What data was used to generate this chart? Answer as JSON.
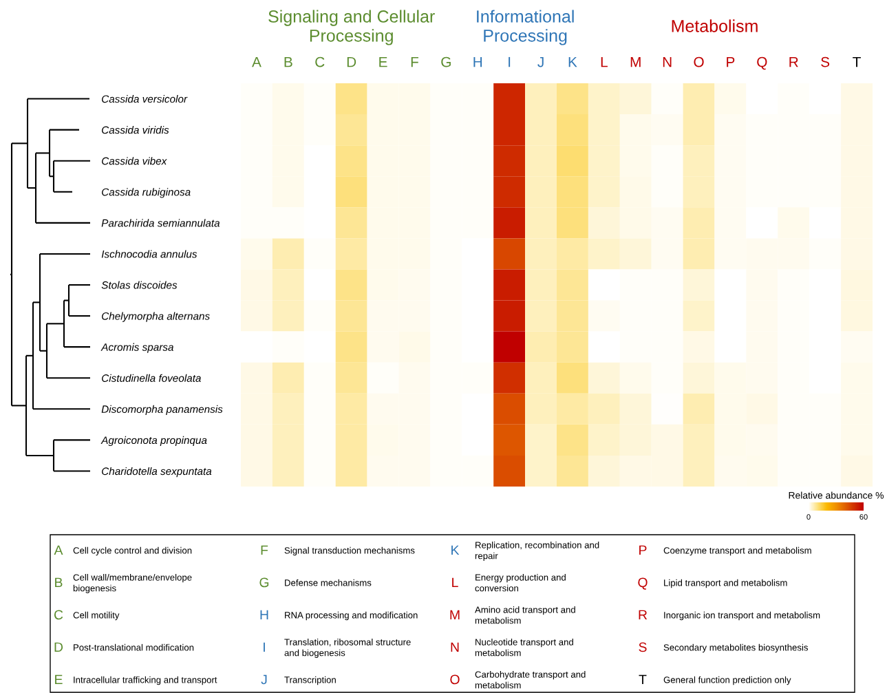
{
  "chart_data": {
    "type": "heatmap",
    "categories": [
      "A",
      "B",
      "C",
      "D",
      "E",
      "F",
      "G",
      "H",
      "I",
      "J",
      "K",
      "L",
      "M",
      "N",
      "O",
      "P",
      "Q",
      "R",
      "S",
      "T"
    ],
    "colors": [
      "#5b8c2e",
      "#5b8c2e",
      "#5b8c2e",
      "#5b8c2e",
      "#5b8c2e",
      "#5b8c2e",
      "#5b8c2e",
      "#2e75b6",
      "#2e75b6",
      "#2e75b6",
      "#2e75b6",
      "#c00000",
      "#c00000",
      "#c00000",
      "#c00000",
      "#c00000",
      "#c00000",
      "#c00000",
      "#c00000",
      "#000000"
    ],
    "y_categories": [
      "Cassida versicolor",
      "Cassida viridis",
      "Cassida vibex",
      "Cassida rubiginosa",
      "Parachirida semiannulata",
      "Ischnocodia annulus",
      "Stolas discoides",
      "Chelymorpha alternans",
      "Acromis sparsa",
      "Cistudinella foveolata",
      "Discomorpha panamensis",
      "Agroiconota propinqua",
      "Charidotella sexpuntata"
    ],
    "cells": [
      [
        0.5,
        1.5,
        0.5,
        9,
        1.5,
        1.5,
        0.5,
        0.5,
        52,
        5,
        9,
        4,
        3,
        0.5,
        6,
        1.5,
        0,
        0.5,
        0,
        2
      ],
      [
        0.5,
        1.5,
        0.5,
        8,
        1.5,
        1.5,
        0.5,
        0.5,
        52,
        5,
        10,
        4,
        1.5,
        1,
        6,
        1,
        0.5,
        0.7,
        0.5,
        2
      ],
      [
        0.5,
        1.5,
        0,
        9,
        1.5,
        1.5,
        0.5,
        0.5,
        51,
        5,
        11,
        4,
        1.5,
        0.7,
        5,
        1,
        0.5,
        0.7,
        0.5,
        2
      ],
      [
        0.5,
        1.5,
        0,
        10,
        1.5,
        1.5,
        0.5,
        0.5,
        51,
        5,
        10,
        4,
        1.8,
        0.7,
        5,
        1,
        0.5,
        0.7,
        0.5,
        2
      ],
      [
        0.5,
        0.5,
        0,
        8,
        1.5,
        1.5,
        0.5,
        0.5,
        54,
        5,
        10,
        3,
        1.8,
        1,
        6,
        1,
        0,
        1.5,
        0,
        2
      ],
      [
        1.5,
        6,
        0.5,
        7,
        1.5,
        1.5,
        0.5,
        0,
        45,
        5,
        7,
        4,
        3,
        1,
        6,
        1,
        1.2,
        1.2,
        0.5,
        2
      ],
      [
        2,
        5,
        0,
        9,
        1.5,
        1.2,
        0.5,
        0,
        54,
        5,
        8,
        0,
        0.5,
        0.5,
        3,
        0,
        1.2,
        0.5,
        0,
        2.5
      ],
      [
        2,
        5,
        0.5,
        8,
        1.2,
        1.2,
        0.5,
        0,
        54,
        5,
        8,
        1,
        0.5,
        0.5,
        4,
        0,
        1.2,
        0.5,
        0,
        2.5
      ],
      [
        0,
        0.5,
        0,
        9,
        1.2,
        1.8,
        0.5,
        0,
        60,
        6,
        8,
        0,
        0.5,
        0.5,
        2,
        0,
        1.2,
        0.5,
        0,
        1
      ],
      [
        2,
        6,
        0.5,
        8,
        0.5,
        1.2,
        0.5,
        0.5,
        50,
        5,
        10,
        3,
        1.5,
        0.5,
        3,
        1.5,
        1.2,
        0.5,
        0,
        1.5
      ],
      [
        2,
        5,
        0.5,
        7,
        1.2,
        1.2,
        0.5,
        0,
        44,
        5,
        7,
        5,
        3,
        0.3,
        6,
        1.5,
        2,
        0.5,
        0.5,
        1.5
      ],
      [
        2,
        5,
        0.5,
        7,
        1.5,
        1.2,
        0.5,
        0,
        42,
        4,
        9,
        4,
        3,
        2,
        5,
        1.5,
        1.2,
        0.5,
        0.5,
        1.5
      ],
      [
        2,
        5,
        0.5,
        7,
        1.2,
        1.2,
        0.5,
        0.5,
        44,
        4,
        8,
        3,
        2,
        2,
        5,
        1.2,
        1.5,
        0.5,
        0.5,
        2
      ]
    ],
    "clabel": "Relative abundance %",
    "clim": [
      0,
      60
    ],
    "cticks": [
      0,
      60
    ],
    "annotations": [
      "Signaling and Cellular\nProcessing",
      "Informational\nProcessing",
      "Metabolism",
      "Cell cycle control and division",
      "Cell wall/membrane/envelope\nbiogenesis",
      "Cell motility",
      "Post-translational modification",
      "Intracellular trafficking and transport",
      "Signal transduction mechanisms",
      "Defense mechanisms",
      "RNA processing and modification",
      "Translation, ribosomal structure\nand biogenesis",
      "Transcription",
      "Replication, recombination and\nrepair",
      "Energy production and\nconversion",
      "Amino acid transport and\nmetabolism",
      "Nucleotide transport and\nmetabolism",
      "Carbohydrate transport and\nmetabolism",
      "Coenzyme transport and metabolism",
      "Lipid transport and metabolism",
      "Inorganic ion transport and metabolism",
      "Secondary metabolites biosynthesis",
      "General function prediction only"
    ]
  }
}
